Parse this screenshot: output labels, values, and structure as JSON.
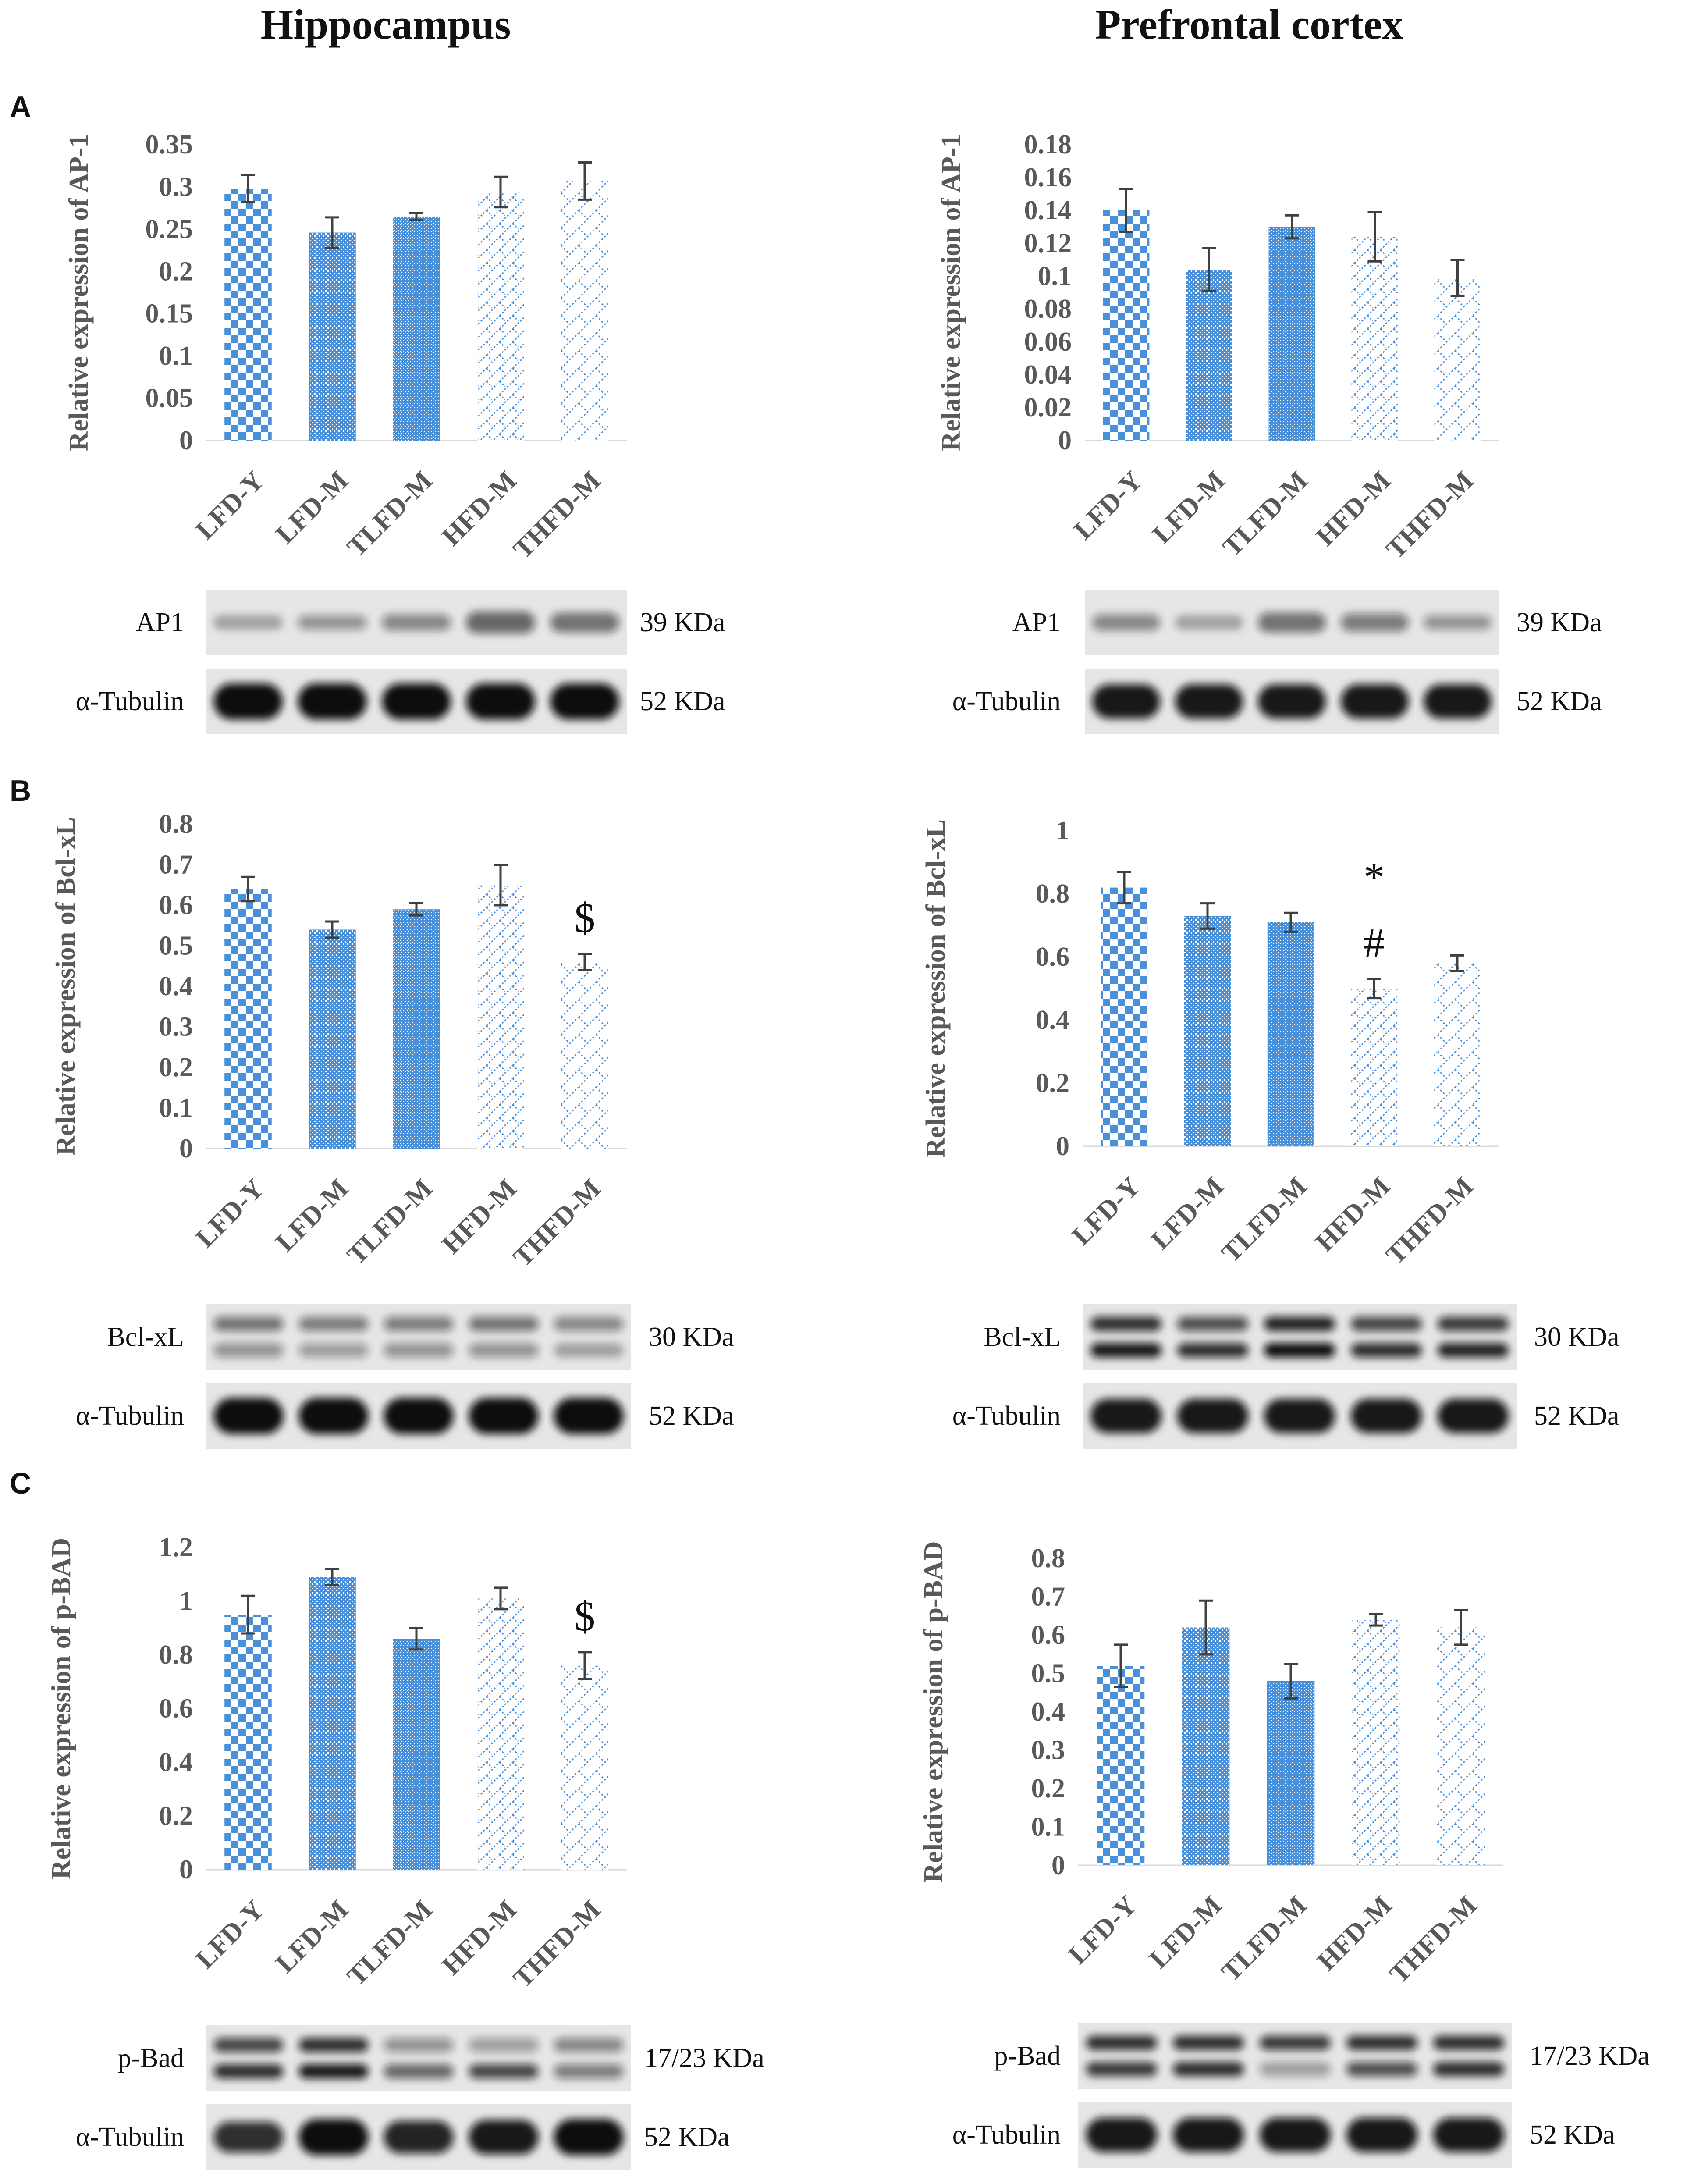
{
  "columns": [
    {
      "title": "Hippocampus"
    },
    {
      "title": "Prefrontal cortex"
    }
  ],
  "panels": [
    {
      "letter": "A"
    },
    {
      "letter": "B"
    },
    {
      "letter": "C"
    }
  ],
  "colors": {
    "bar_fill": "#4a90d9",
    "axis_text": "#595959",
    "error_bar": "#404040",
    "blot_bg": "#e6e6e6",
    "band": "#111111"
  },
  "categories": [
    "LFD-Y",
    "LFD-M",
    "TLFD-M",
    "HFD-M",
    "THFD-M"
  ],
  "patterns": [
    "checker-large",
    "dots-dense",
    "dots-fine",
    "diag-dash",
    "diag-dash-sparse"
  ],
  "chart_data": [
    {
      "id": "A-hippocampus",
      "type": "bar",
      "panel": "A",
      "region": "Hippocampus",
      "ylabel": "Relative expression of AP-1",
      "categories": [
        "LFD-Y",
        "LFD-M",
        "TLFD-M",
        "HFD-M",
        "THFD-M"
      ],
      "values": [
        0.298,
        0.246,
        0.265,
        0.294,
        0.307
      ],
      "errors": [
        0.016,
        0.018,
        0.004,
        0.018,
        0.022
      ],
      "ylim": [
        0,
        0.35
      ],
      "ticks": [
        "0",
        "0.05",
        "0.1",
        "0.15",
        "0.2",
        "0.25",
        "0.3",
        "0.35"
      ],
      "significance": [
        "",
        "",
        "",
        "",
        ""
      ],
      "blots": [
        {
          "label": "AP1",
          "kda": "39 KDa",
          "bands": [
            [
              0.3
            ],
            [
              0.4
            ],
            [
              0.45
            ],
            [
              0.6
            ],
            [
              0.55
            ]
          ]
        },
        {
          "label": "α-Tubulin",
          "kda": "52 KDa",
          "bands": [
            [
              1.0
            ],
            [
              1.0
            ],
            [
              1.0
            ],
            [
              1.0
            ],
            [
              1.0
            ]
          ]
        }
      ]
    },
    {
      "id": "A-prefrontal",
      "type": "bar",
      "panel": "A",
      "region": "Prefrontal cortex",
      "ylabel": "Relative expression of AP-1",
      "categories": [
        "LFD-Y",
        "LFD-M",
        "TLFD-M",
        "HFD-M",
        "THFD-M"
      ],
      "values": [
        0.14,
        0.104,
        0.13,
        0.124,
        0.099
      ],
      "errors": [
        0.013,
        0.013,
        0.007,
        0.015,
        0.011
      ],
      "ylim": [
        0,
        0.18
      ],
      "ticks": [
        "0",
        "0.02",
        "0.04",
        "0.06",
        "0.08",
        "0.1",
        "0.12",
        "0.14",
        "0.16",
        "0.18"
      ],
      "significance": [
        "",
        "",
        "",
        "",
        ""
      ],
      "blots": [
        {
          "label": "AP1",
          "kda": "39 KDa",
          "bands": [
            [
              0.45
            ],
            [
              0.3
            ],
            [
              0.55
            ],
            [
              0.5
            ],
            [
              0.4
            ]
          ]
        },
        {
          "label": "α-Tubulin",
          "kda": "52 KDa",
          "bands": [
            [
              0.95
            ],
            [
              0.95
            ],
            [
              0.95
            ],
            [
              0.95
            ],
            [
              0.95
            ]
          ]
        }
      ]
    },
    {
      "id": "B-hippocampus",
      "type": "bar",
      "panel": "B",
      "region": "Hippocampus",
      "ylabel": "Relative expression of Bcl-xL",
      "categories": [
        "LFD-Y",
        "LFD-M",
        "TLFD-M",
        "HFD-M",
        "THFD-M"
      ],
      "values": [
        0.64,
        0.54,
        0.59,
        0.65,
        0.46
      ],
      "errors": [
        0.03,
        0.02,
        0.015,
        0.05,
        0.02
      ],
      "ylim": [
        0,
        0.8
      ],
      "ticks": [
        "0",
        "0.1",
        "0.2",
        "0.3",
        "0.4",
        "0.5",
        "0.6",
        "0.7",
        "0.8"
      ],
      "significance": [
        "",
        "",
        "",
        "",
        "$"
      ],
      "blots": [
        {
          "label": "Bcl-xL",
          "kda": "30 KDa",
          "bands": [
            [
              0.55,
              0.4
            ],
            [
              0.5,
              0.35
            ],
            [
              0.5,
              0.4
            ],
            [
              0.55,
              0.4
            ],
            [
              0.45,
              0.3
            ]
          ]
        },
        {
          "label": "α-Tubulin",
          "kda": "52 KDa",
          "bands": [
            [
              1.0
            ],
            [
              1.0
            ],
            [
              1.0
            ],
            [
              1.0
            ],
            [
              1.0
            ]
          ]
        }
      ]
    },
    {
      "id": "B-prefrontal",
      "type": "bar",
      "panel": "B",
      "region": "Prefrontal cortex",
      "ylabel": "Relative expression of Bcl-xL",
      "categories": [
        "LFD-Y",
        "LFD-M",
        "TLFD-M",
        "HFD-M",
        "THFD-M"
      ],
      "values": [
        0.82,
        0.73,
        0.71,
        0.5,
        0.58
      ],
      "errors": [
        0.05,
        0.04,
        0.03,
        0.03,
        0.025
      ],
      "ylim": [
        0,
        1
      ],
      "ticks": [
        "0",
        "0.2",
        "0.4",
        "0.6",
        "0.8",
        "1"
      ],
      "significance": [
        "",
        "",
        "",
        "*\n#",
        ""
      ],
      "blots": [
        {
          "label": "Bcl-xL",
          "kda": "30 KDa",
          "bands": [
            [
              0.85,
              0.95
            ],
            [
              0.7,
              0.85
            ],
            [
              0.9,
              1.0
            ],
            [
              0.75,
              0.85
            ],
            [
              0.8,
              0.9
            ]
          ]
        },
        {
          "label": "α-Tubulin",
          "kda": "52 KDa",
          "bands": [
            [
              0.95
            ],
            [
              0.95
            ],
            [
              0.95
            ],
            [
              0.95
            ],
            [
              0.95
            ]
          ]
        }
      ]
    },
    {
      "id": "C-hippocampus",
      "type": "bar",
      "panel": "C",
      "region": "Hippocampus",
      "ylabel": "Relative expression of p-BAD",
      "categories": [
        "LFD-Y",
        "LFD-M",
        "TLFD-M",
        "HFD-M",
        "THFD-M"
      ],
      "values": [
        0.95,
        1.09,
        0.86,
        1.01,
        0.76
      ],
      "errors": [
        0.07,
        0.03,
        0.04,
        0.04,
        0.05
      ],
      "ylim": [
        0,
        1.2
      ],
      "ticks": [
        "0",
        "0.2",
        "0.4",
        "0.6",
        "0.8",
        "1",
        "1.2"
      ],
      "significance": [
        "",
        "",
        "",
        "",
        "$"
      ],
      "blots": [
        {
          "label": "p-Bad",
          "kda": "17/23 KDa",
          "bands": [
            [
              0.75,
              0.85
            ],
            [
              0.85,
              0.95
            ],
            [
              0.4,
              0.6
            ],
            [
              0.35,
              0.75
            ],
            [
              0.45,
              0.5
            ]
          ]
        },
        {
          "label": "α-Tubulin",
          "kda": "52 KDa",
          "bands": [
            [
              0.85
            ],
            [
              1.0
            ],
            [
              0.9
            ],
            [
              0.95
            ],
            [
              1.0
            ]
          ]
        }
      ]
    },
    {
      "id": "C-prefrontal",
      "type": "bar",
      "panel": "C",
      "region": "Prefrontal cortex",
      "ylabel": "Relative expression of p-BAD",
      "categories": [
        "LFD-Y",
        "LFD-M",
        "TLFD-M",
        "HFD-M",
        "THFD-M"
      ],
      "values": [
        0.52,
        0.62,
        0.48,
        0.64,
        0.62
      ],
      "errors": [
        0.055,
        0.07,
        0.045,
        0.015,
        0.045
      ],
      "ylim": [
        0,
        0.8
      ],
      "ticks": [
        "0",
        "0.1",
        "0.2",
        "0.3",
        "0.4",
        "0.5",
        "0.6",
        "0.7",
        "0.8"
      ],
      "significance": [
        "",
        "",
        "",
        "",
        ""
      ],
      "blots": [
        {
          "label": "p-Bad",
          "kda": "17/23 KDa",
          "bands": [
            [
              0.85,
              0.8
            ],
            [
              0.85,
              0.85
            ],
            [
              0.8,
              0.35
            ],
            [
              0.85,
              0.7
            ],
            [
              0.85,
              0.85
            ]
          ]
        },
        {
          "label": "α-Tubulin",
          "kda": "52 KDa",
          "bands": [
            [
              0.95
            ],
            [
              0.95
            ],
            [
              0.95
            ],
            [
              0.95
            ],
            [
              0.95
            ]
          ]
        }
      ]
    }
  ]
}
